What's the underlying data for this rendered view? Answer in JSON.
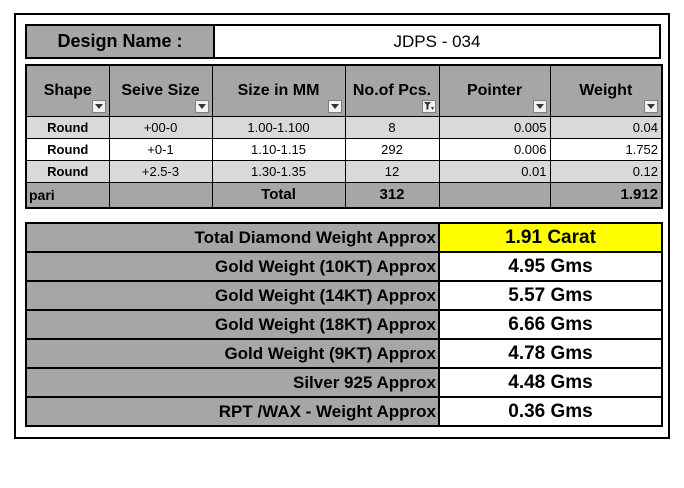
{
  "design": {
    "label": "Design Name :",
    "value": "JDPS - 034"
  },
  "table": {
    "columns": [
      "Shape",
      "Seive Size",
      "Size in MM",
      "No.of Pcs.",
      "Pointer",
      "Weight"
    ],
    "rows": [
      {
        "shape": "Round",
        "seive": "+00-0",
        "mm": "1.00-1.100",
        "pcs": "8",
        "pointer": "0.005",
        "weight": "0.04"
      },
      {
        "shape": "Round",
        "seive": "+0-1",
        "mm": "1.10-1.15",
        "pcs": "292",
        "pointer": "0.006",
        "weight": "1.752"
      },
      {
        "shape": "Round",
        "seive": "+2.5-3",
        "mm": "1.30-1.35",
        "pcs": "12",
        "pointer": "0.01",
        "weight": "0.12"
      }
    ],
    "footer": {
      "shape": "pari",
      "total_label": "Total",
      "pcs_total": "312",
      "weight_total": "1.912"
    },
    "filter_icons": [
      "dropdown-arrow-icon",
      "dropdown-arrow-icon",
      "dropdown-arrow-icon",
      "filter-active-icon",
      "dropdown-arrow-icon",
      "dropdown-arrow-icon"
    ]
  },
  "summary": [
    {
      "label": "Total Diamond Weight Approx",
      "value": "1.91 Carat"
    },
    {
      "label": "Gold Weight (10KT) Approx",
      "value": "4.95 Gms"
    },
    {
      "label": "Gold Weight (14KT) Approx",
      "value": "5.57 Gms"
    },
    {
      "label": "Gold Weight (18KT) Approx",
      "value": "6.66 Gms"
    },
    {
      "label": "Gold Weight (9KT) Approx",
      "value": "4.78 Gms"
    },
    {
      "label": "Silver 925 Approx",
      "value": "4.48 Gms"
    },
    {
      "label": "RPT /WAX - Weight Approx",
      "value": "0.36 Gms"
    }
  ],
  "colors": {
    "header_gray": "#a6a6a6",
    "band_gray": "#d9d9d9",
    "highlight": "#ffff00"
  }
}
